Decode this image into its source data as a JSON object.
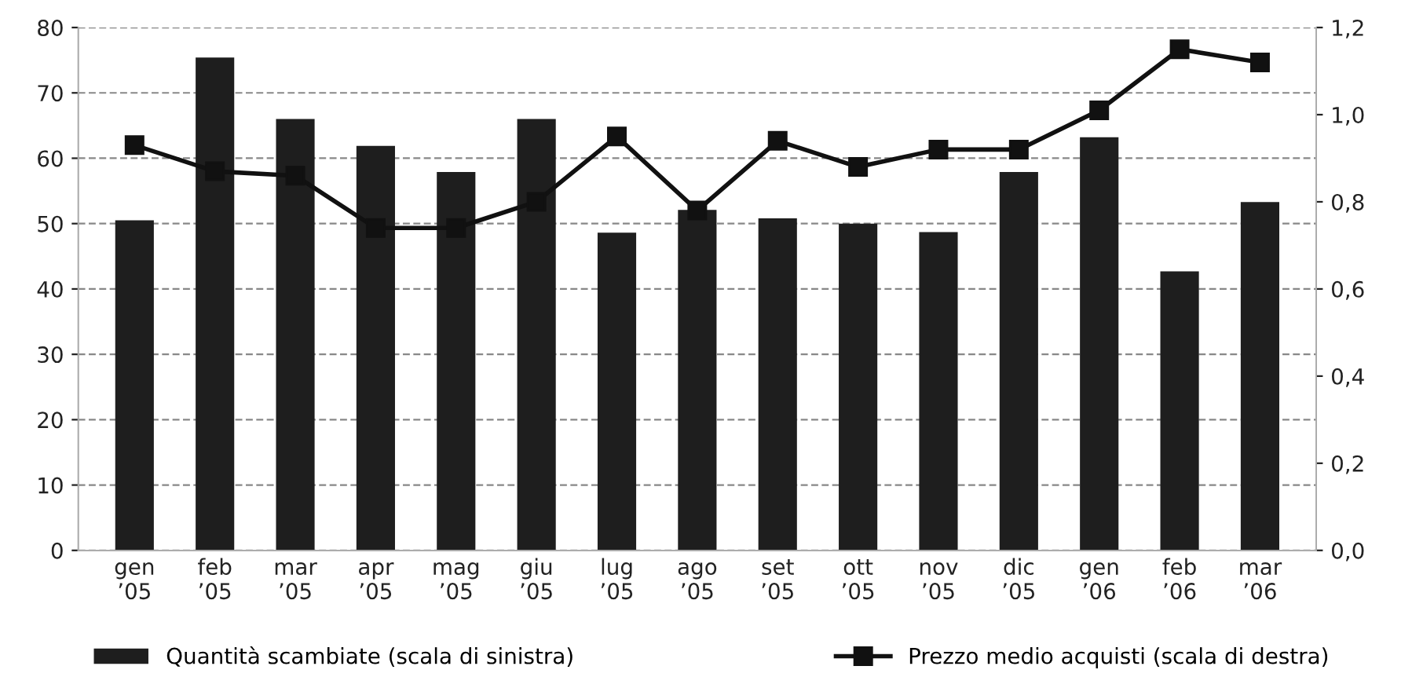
{
  "chart_data": {
    "type": "bar",
    "categories": [
      "gen\n’05",
      "feb\n’05",
      "mar\n’05",
      "apr\n’05",
      "mag\n’05",
      "giu\n’05",
      "lug\n’05",
      "ago\n’05",
      "set\n’05",
      "ott\n’05",
      "nov\n’05",
      "dic\n’05",
      "gen\n’06",
      "feb\n’06",
      "mar\n’06"
    ],
    "series": [
      {
        "name": "Quantità scambiate (scala di sinistra)",
        "color": "#1e1e1e",
        "values": [
          50.5,
          75.4,
          66,
          61.9,
          57.9,
          66,
          48.6,
          52.1,
          50.8,
          50,
          48.7,
          57.9,
          63.2,
          42.7,
          53.3
        ]
      },
      {
        "name": "Prezzo medio acquisti (scala di destra)",
        "type": "line",
        "axis": "y2",
        "color": "#111111",
        "marker": "square",
        "line_style": "solid",
        "values": [
          0.93,
          0.87,
          0.86,
          0.74,
          0.74,
          0.8,
          0.95,
          0.78,
          0.94,
          0.88,
          0.92,
          0.92,
          1.01,
          1.15,
          1.12
        ]
      }
    ],
    "ylim": [
      0,
      80
    ],
    "yticks": [
      0,
      10,
      20,
      30,
      40,
      50,
      60,
      70,
      80
    ],
    "y2lim": [
      0,
      1.2
    ],
    "y2ticks": [
      {
        "value": 0,
        "label": "0,0"
      },
      {
        "value": 0.2,
        "label": "0,2"
      },
      {
        "value": 0.4,
        "label": "0,4"
      },
      {
        "value": 0.6,
        "label": "0,6"
      },
      {
        "value": 0.8,
        "label": "0,8"
      },
      {
        "value": 1.0,
        "label": "1,0"
      },
      {
        "value": 1.2,
        "label": "1,2"
      }
    ],
    "grid": "y",
    "legend": "bottom"
  }
}
